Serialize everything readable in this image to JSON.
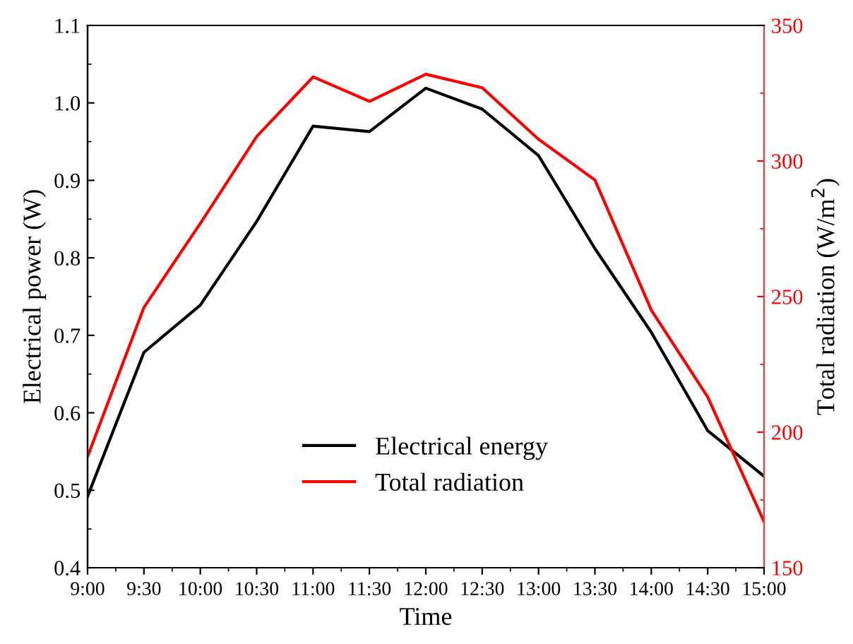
{
  "chart_data": {
    "type": "line",
    "xlabel": "Time",
    "ylabel": "Electrical power (W)",
    "y2label": "Total radiation (W/m$^{2}$)",
    "categories": [
      "9:00",
      "9:30",
      "10:00",
      "10:30",
      "11:00",
      "11:30",
      "12:00",
      "12:30",
      "13:00",
      "13:30",
      "14:00",
      "14:30",
      "15:00"
    ],
    "series": [
      {
        "name": "Electrical energy",
        "color": "#000000",
        "values": [
          0.492,
          0.678,
          0.739,
          0.847,
          0.97,
          0.963,
          1.019,
          0.992,
          0.932,
          0.812,
          0.704,
          0.577,
          0.518
        ]
      },
      {
        "name": "Total radiation",
        "color": "#ff0000",
        "axis": "y2",
        "values": [
          191,
          246,
          277,
          309,
          331,
          322,
          332,
          327,
          308,
          293,
          245,
          213,
          167
        ]
      }
    ],
    "ylim": [
      0.4,
      1.1
    ],
    "yticks": [
      {
        "value": 0.4,
        "label": "0.4"
      },
      {
        "value": 0.5,
        "label": "0.5"
      },
      {
        "value": 0.6,
        "label": "0.6"
      },
      {
        "value": 0.7,
        "label": "0.7"
      },
      {
        "value": 0.8,
        "label": "0.8"
      },
      {
        "value": 0.9,
        "label": "0.9"
      },
      {
        "value": 1.0,
        "label": "1.0"
      },
      {
        "value": 1.1,
        "label": "1.1"
      }
    ],
    "y2lim": [
      150,
      350
    ],
    "y2ticks": [
      150,
      200,
      250,
      300,
      350
    ],
    "legend": "bottom",
    "grid": false,
    "marker": "none",
    "line_style": "solid"
  }
}
